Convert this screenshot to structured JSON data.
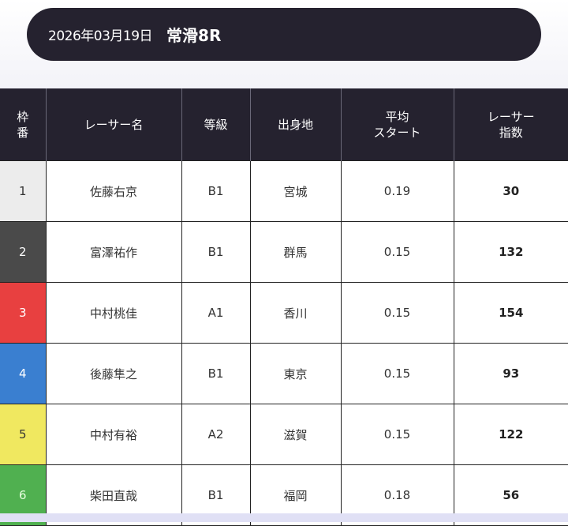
{
  "header": {
    "date": "2026年03月19日",
    "race": "常滑8R"
  },
  "table": {
    "columns": [
      "枠\n番",
      "レーサー名",
      "等級",
      "出身地",
      "平均\nスタート",
      "レーサー\n指数"
    ],
    "rows": [
      {
        "frame": "1",
        "name": "佐藤右京",
        "grade": "B1",
        "origin": "宮城",
        "avg_start": "0.19",
        "index": "30",
        "frame_color": "#ececec",
        "frame_text_color": "#333333"
      },
      {
        "frame": "2",
        "name": "富澤祐作",
        "grade": "B1",
        "origin": "群馬",
        "avg_start": "0.15",
        "index": "132",
        "frame_color": "#4a4a4a",
        "frame_text_color": "#ffffff"
      },
      {
        "frame": "3",
        "name": "中村桃佳",
        "grade": "A1",
        "origin": "香川",
        "avg_start": "0.15",
        "index": "154",
        "frame_color": "#e84040",
        "frame_text_color": "#ffffff"
      },
      {
        "frame": "4",
        "name": "後藤隼之",
        "grade": "B1",
        "origin": "東京",
        "avg_start": "0.15",
        "index": "93",
        "frame_color": "#3a7fd0",
        "frame_text_color": "#ffffff"
      },
      {
        "frame": "5",
        "name": "中村有裕",
        "grade": "A2",
        "origin": "滋賀",
        "avg_start": "0.15",
        "index": "122",
        "frame_color": "#f0e860",
        "frame_text_color": "#333333"
      },
      {
        "frame": "6",
        "name": "柴田直哉",
        "grade": "B1",
        "origin": "福岡",
        "avg_start": "0.18",
        "index": "56",
        "frame_color": "#50b050",
        "frame_text_color": "#e8ffe0"
      }
    ]
  }
}
